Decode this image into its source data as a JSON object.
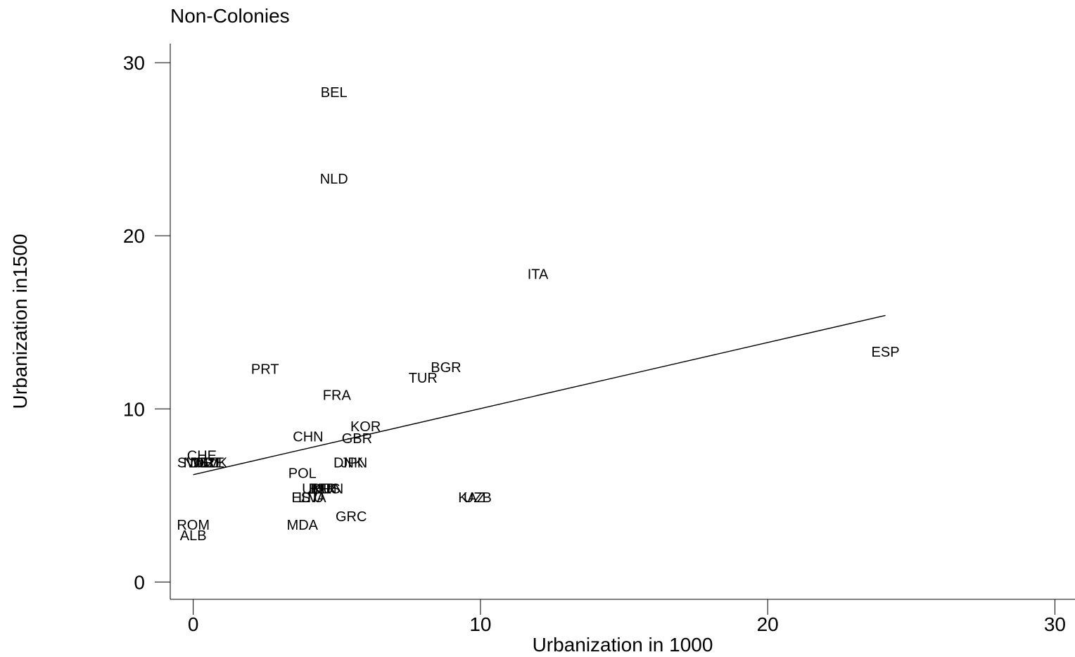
{
  "chart_data": {
    "type": "scatter",
    "title": "Non-Colonies",
    "xlabel": "Urbanization in 1000",
    "ylabel": "Urbanization in1500",
    "xlim": [
      -0.8,
      30.7
    ],
    "ylim": [
      -1.0,
      31.1
    ],
    "xticks": [
      0,
      10,
      20,
      30
    ],
    "yticks": [
      0,
      10,
      20,
      30
    ],
    "grid": false,
    "points": [
      {
        "label": "BEL",
        "x": 4.9,
        "y": 28.3
      },
      {
        "label": "NLD",
        "x": 4.9,
        "y": 23.3
      },
      {
        "label": "ITA",
        "x": 12.0,
        "y": 17.8
      },
      {
        "label": "ESP",
        "x": 24.1,
        "y": 13.3
      },
      {
        "label": "PRT",
        "x": 2.5,
        "y": 12.3
      },
      {
        "label": "BGR",
        "x": 8.8,
        "y": 12.4
      },
      {
        "label": "TUR",
        "x": 8.0,
        "y": 11.8
      },
      {
        "label": "FRA",
        "x": 5.0,
        "y": 10.8
      },
      {
        "label": "KOR",
        "x": 6.0,
        "y": 9.0
      },
      {
        "label": "CHN",
        "x": 4.0,
        "y": 8.4
      },
      {
        "label": "GBR",
        "x": 5.7,
        "y": 8.3
      },
      {
        "label": "CHE",
        "x": 0.3,
        "y": 7.3
      },
      {
        "label": "SWE",
        "x": 0.0,
        "y": 6.9
      },
      {
        "label": "NOR",
        "x": 0.2,
        "y": 6.9
      },
      {
        "label": "DEU",
        "x": 0.4,
        "y": 6.9
      },
      {
        "label": "AUT",
        "x": 0.5,
        "y": 6.9
      },
      {
        "label": "CZE",
        "x": 0.6,
        "y": 6.9
      },
      {
        "label": "SVK",
        "x": 0.7,
        "y": 6.9
      },
      {
        "label": "DNK",
        "x": 5.4,
        "y": 6.9
      },
      {
        "label": "JPN",
        "x": 5.6,
        "y": 6.9
      },
      {
        "label": "POL",
        "x": 3.8,
        "y": 6.3
      },
      {
        "label": "UKR",
        "x": 4.3,
        "y": 5.4
      },
      {
        "label": "BLR",
        "x": 4.5,
        "y": 5.4
      },
      {
        "label": "RUS",
        "x": 4.6,
        "y": 5.4
      },
      {
        "label": "HUN",
        "x": 4.7,
        "y": 5.4
      },
      {
        "label": "LTU",
        "x": 4.1,
        "y": 4.9
      },
      {
        "label": "LVA",
        "x": 4.2,
        "y": 4.9
      },
      {
        "label": "EST",
        "x": 3.9,
        "y": 4.9
      },
      {
        "label": "KAZ",
        "x": 9.7,
        "y": 4.9
      },
      {
        "label": "UZB",
        "x": 9.9,
        "y": 4.9
      },
      {
        "label": "GRC",
        "x": 5.5,
        "y": 3.8
      },
      {
        "label": "ROM",
        "x": 0.0,
        "y": 3.3
      },
      {
        "label": "MDA",
        "x": 3.8,
        "y": 3.3
      },
      {
        "label": "ALB",
        "x": 0.0,
        "y": 2.7
      }
    ],
    "fit_line": {
      "x": [
        0,
        24.1
      ],
      "y": [
        6.2,
        15.4
      ]
    }
  }
}
